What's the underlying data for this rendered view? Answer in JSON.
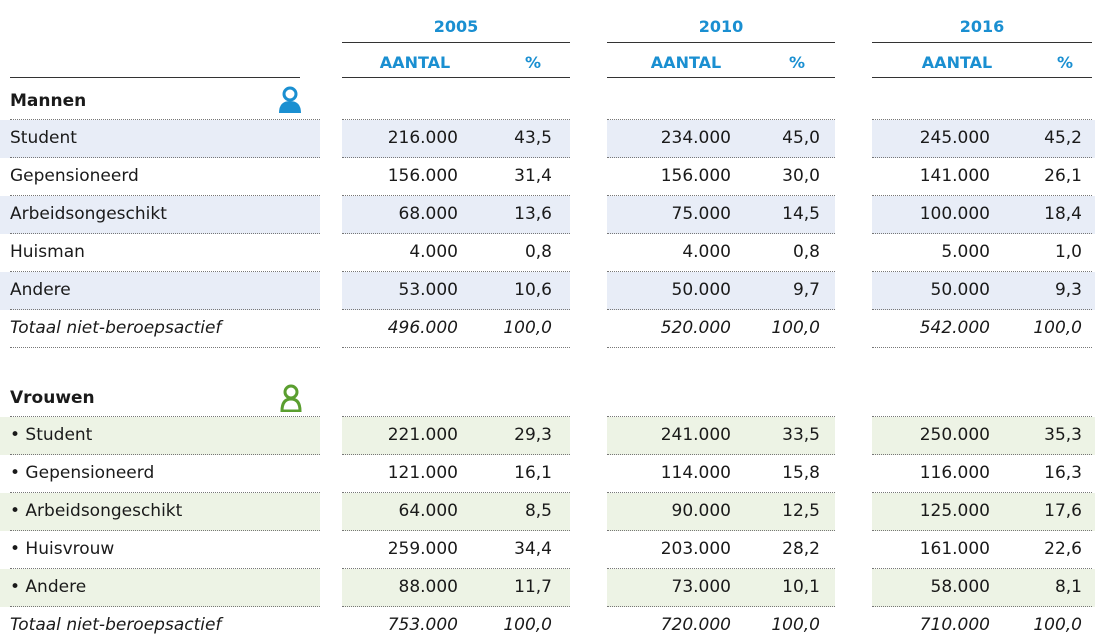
{
  "table": {
    "years": [
      {
        "year": "2005",
        "columns": [
          "AANTAL",
          "%"
        ]
      },
      {
        "year": "2010",
        "columns": [
          "AANTAL",
          "%"
        ]
      },
      {
        "year": "2016",
        "columns": [
          "AANTAL",
          "%"
        ]
      }
    ],
    "sections": [
      {
        "title": "Mannen",
        "rows": [
          {
            "label": "Student",
            "values": [
              "216.000",
              "43,5",
              "234.000",
              "45,0",
              "245.000",
              "45,2"
            ]
          },
          {
            "label": "Gepensioneerd",
            "values": [
              "156.000",
              "31,4",
              "156.000",
              "30,0",
              "141.000",
              "26,1"
            ]
          },
          {
            "label": "Arbeidsongeschikt",
            "values": [
              "68.000",
              "13,6",
              "75.000",
              "14,5",
              "100.000",
              "18,4"
            ]
          },
          {
            "label": "Huisman",
            "values": [
              "4.000",
              "0,8",
              "4.000",
              "0,8",
              "5.000",
              "1,0"
            ]
          },
          {
            "label": "Andere",
            "values": [
              "53.000",
              "10,6",
              "50.000",
              "9,7",
              "50.000",
              "9,3"
            ]
          }
        ],
        "total": {
          "label": "Totaal niet-beroepsactief",
          "values": [
            "496.000",
            "100,0",
            "520.000",
            "100,0",
            "542.000",
            "100,0"
          ]
        }
      },
      {
        "title": "Vrouwen",
        "rows": [
          {
            "label": "• Student",
            "values": [
              "221.000",
              "29,3",
              "241.000",
              "33,5",
              "250.000",
              "35,3"
            ]
          },
          {
            "label": "• Gepensioneerd",
            "values": [
              "121.000",
              "16,1",
              "114.000",
              "15,8",
              "116.000",
              "16,3"
            ]
          },
          {
            "label": "• Arbeidsongeschikt",
            "values": [
              "64.000",
              "8,5",
              "90.000",
              "12,5",
              "125.000",
              "17,6"
            ]
          },
          {
            "label": "• Huisvrouw",
            "values": [
              "259.000",
              "34,4",
              "203.000",
              "28,2",
              "161.000",
              "22,6"
            ]
          },
          {
            "label": "• Andere",
            "values": [
              "88.000",
              "11,7",
              "73.000",
              "10,1",
              "58.000",
              "8,1"
            ]
          }
        ],
        "total": {
          "label": "Totaal niet-beroepsactief",
          "values": [
            "753.000",
            "100,0",
            "720.000",
            "100,0",
            "710.000",
            "100,0"
          ]
        }
      }
    ]
  }
}
